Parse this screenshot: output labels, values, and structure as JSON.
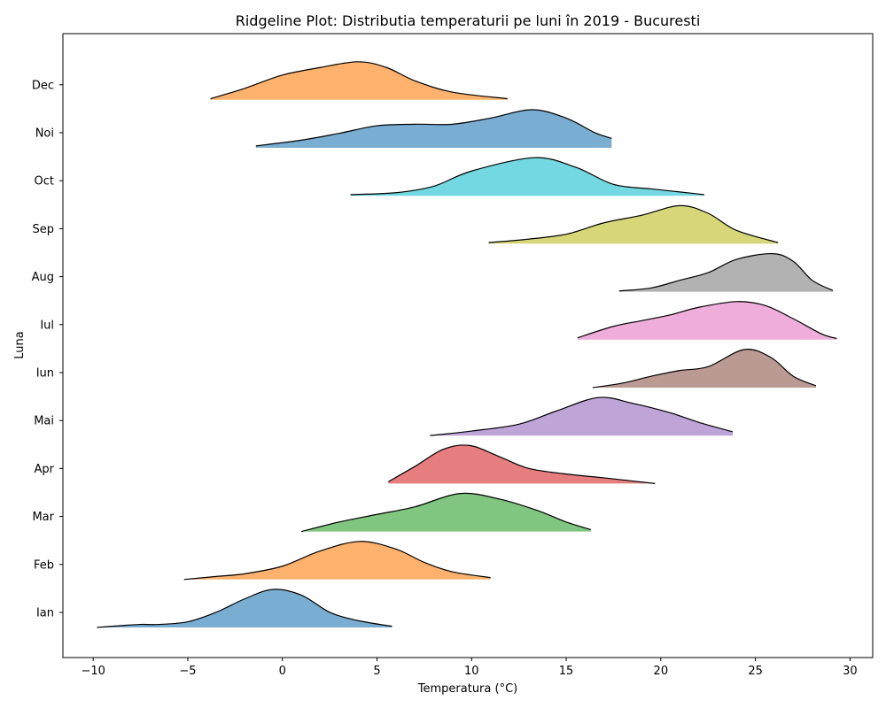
{
  "chart_data": {
    "type": "ridgeline",
    "title": "Ridgeline Plot: Distributia temperaturii pe luni în 2019 - Bucuresti",
    "xlabel": "Temperatura (°C)",
    "ylabel": "Luna",
    "xlim": [
      -11.6,
      31.2
    ],
    "x_ticks": [
      -10,
      -5,
      0,
      5,
      10,
      15,
      20,
      25,
      30
    ],
    "x_tick_labels": [
      "−10",
      "−5",
      "0",
      "5",
      "10",
      "15",
      "20",
      "25",
      "30"
    ],
    "grid": false,
    "legend": "none",
    "series": [
      {
        "name": "Ian",
        "color": "#1f77b4",
        "range": [
          -9.8,
          5.8
        ],
        "mode": -0.5,
        "density_x": [
          -9.8,
          -8.5,
          -7.5,
          -6.5,
          -5.0,
          -3.5,
          -2.0,
          -0.5,
          1.0,
          2.5,
          4.0,
          5.8
        ],
        "density": [
          0.0,
          0.05,
          0.08,
          0.08,
          0.15,
          0.4,
          0.75,
          1.0,
          0.85,
          0.4,
          0.18,
          0.03
        ]
      },
      {
        "name": "Feb",
        "color": "#ff7f0e",
        "range": [
          -5.2,
          11.0
        ],
        "mode": 4.1,
        "density_x": [
          -5.2,
          -3.5,
          -2.0,
          0.0,
          2.0,
          4.1,
          6.0,
          7.5,
          9.0,
          11.0
        ],
        "density": [
          0.0,
          0.08,
          0.15,
          0.35,
          0.75,
          1.0,
          0.8,
          0.45,
          0.2,
          0.05
        ]
      },
      {
        "name": "Mar",
        "color": "#2ca02c",
        "range": [
          1.0,
          16.3
        ],
        "mode": 9.4,
        "density_x": [
          1.0,
          3.0,
          5.0,
          7.0,
          9.4,
          11.5,
          13.5,
          15.0,
          16.3
        ],
        "density": [
          0.0,
          0.25,
          0.45,
          0.65,
          1.0,
          0.85,
          0.55,
          0.25,
          0.05
        ]
      },
      {
        "name": "Apr",
        "color": "#d62728",
        "range": [
          5.6,
          19.7
        ],
        "mode": 9.9,
        "density_x": [
          5.6,
          7.0,
          8.5,
          9.9,
          11.5,
          13.0,
          15.0,
          17.0,
          19.7
        ],
        "density": [
          0.05,
          0.45,
          0.9,
          1.0,
          0.7,
          0.4,
          0.25,
          0.15,
          0.0
        ]
      },
      {
        "name": "Mai",
        "color": "#9467bd",
        "range": [
          7.8,
          23.8
        ],
        "mode": 16.7,
        "density_x": [
          7.8,
          10.0,
          12.5,
          14.5,
          16.7,
          18.5,
          20.5,
          22.0,
          23.8
        ],
        "density": [
          0.0,
          0.12,
          0.3,
          0.65,
          1.0,
          0.85,
          0.6,
          0.35,
          0.1
        ]
      },
      {
        "name": "Iun",
        "color": "#8c564b",
        "range": [
          16.4,
          28.2
        ],
        "mode": 24.4,
        "density_x": [
          16.4,
          18.0,
          19.5,
          21.0,
          22.5,
          24.4,
          25.8,
          27.0,
          28.2
        ],
        "density": [
          0.0,
          0.12,
          0.3,
          0.45,
          0.55,
          1.0,
          0.8,
          0.3,
          0.05
        ]
      },
      {
        "name": "Iul",
        "color": "#e377c2",
        "range": [
          15.6,
          29.3
        ],
        "mode": 24.0,
        "density_x": [
          15.6,
          17.5,
          19.0,
          20.5,
          22.0,
          24.0,
          25.5,
          27.0,
          28.5,
          29.3
        ],
        "density": [
          0.05,
          0.35,
          0.5,
          0.65,
          0.85,
          1.0,
          0.9,
          0.55,
          0.15,
          0.03
        ]
      },
      {
        "name": "Aug",
        "color": "#7f7f7f",
        "range": [
          17.8,
          29.1
        ],
        "mode": 25.9,
        "density_x": [
          17.8,
          19.5,
          21.0,
          22.5,
          24.0,
          25.9,
          27.0,
          28.0,
          29.1
        ],
        "density": [
          0.02,
          0.1,
          0.3,
          0.5,
          0.85,
          1.0,
          0.8,
          0.3,
          0.03
        ]
      },
      {
        "name": "Sep",
        "color": "#bcbd22",
        "range": [
          10.9,
          26.2
        ],
        "mode": 21.0,
        "density_x": [
          10.9,
          13.0,
          15.0,
          17.0,
          19.0,
          21.0,
          22.5,
          24.0,
          26.2
        ],
        "density": [
          0.03,
          0.12,
          0.25,
          0.55,
          0.75,
          1.0,
          0.8,
          0.35,
          0.03
        ]
      },
      {
        "name": "Oct",
        "color": "#17becf",
        "range": [
          3.6,
          22.3
        ],
        "mode": 13.3,
        "density_x": [
          3.6,
          6.0,
          8.0,
          10.0,
          13.3,
          15.5,
          17.5,
          19.5,
          21.0,
          22.3
        ],
        "density": [
          0.03,
          0.08,
          0.25,
          0.65,
          1.0,
          0.75,
          0.3,
          0.18,
          0.1,
          0.03
        ]
      },
      {
        "name": "Noi",
        "color": "#1f77b4",
        "range": [
          -1.4,
          17.4
        ],
        "mode": 13.2,
        "density_x": [
          -1.4,
          1.0,
          3.0,
          5.0,
          7.0,
          9.0,
          11.0,
          13.2,
          15.0,
          16.5,
          17.4
        ],
        "density": [
          0.05,
          0.2,
          0.38,
          0.58,
          0.62,
          0.62,
          0.78,
          1.0,
          0.78,
          0.4,
          0.25
        ]
      },
      {
        "name": "Dec",
        "color": "#ff7f0e",
        "range": [
          -3.8,
          11.9
        ],
        "mode": 4.0,
        "density_x": [
          -3.8,
          -2.0,
          0.0,
          2.0,
          4.0,
          5.5,
          7.0,
          9.0,
          11.9
        ],
        "density": [
          0.03,
          0.3,
          0.65,
          0.85,
          1.0,
          0.85,
          0.5,
          0.2,
          0.03
        ]
      }
    ]
  }
}
